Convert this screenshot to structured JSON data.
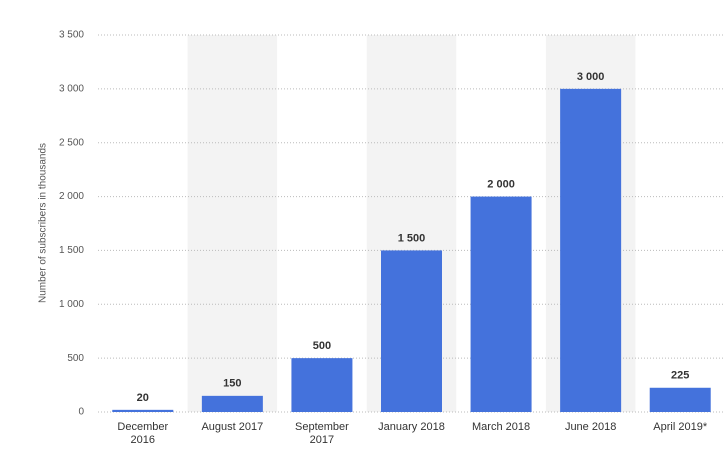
{
  "chart_data": {
    "type": "bar",
    "y_label": "Number of subscribers in thousands",
    "categories": [
      "December 2016",
      "August 2017",
      "September 2017",
      "January 2018",
      "March 2018",
      "June 2018",
      "April 2019*"
    ],
    "values": [
      20,
      150,
      500,
      1500,
      2000,
      3000,
      225
    ],
    "value_labels": [
      "20",
      "150",
      "500",
      "1 500",
      "2 000",
      "3 000",
      "225"
    ],
    "color": "#4472dc",
    "ylim": [
      0,
      3500
    ],
    "yticks": [
      0,
      500,
      {
        "value": 1000,
        "label": "1 000"
      },
      {
        "value": 1500,
        "label": "1 500"
      },
      {
        "value": 2000,
        "label": "2 000"
      },
      {
        "value": 2500,
        "label": "2 500"
      },
      {
        "value": 3000,
        "label": "3 000"
      },
      {
        "value": 3500,
        "label": "3 500"
      }
    ],
    "grid": true
  }
}
